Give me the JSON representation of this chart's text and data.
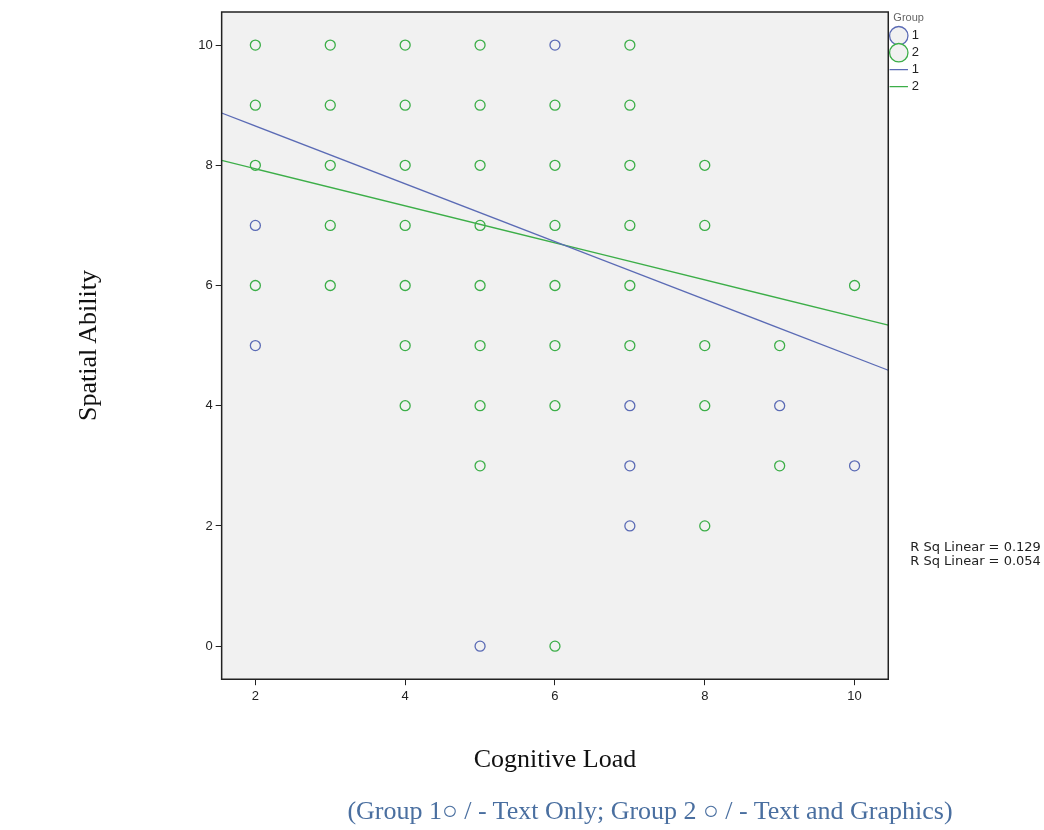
{
  "chart_data": {
    "type": "scatter",
    "xlabel": "Cognitive Load",
    "ylabel": "Spatial Ability",
    "legend_title": "Group",
    "legend": "top right",
    "grid": false,
    "marker": "circle",
    "line_style": "solid",
    "xlim": [
      1.55,
      10.45
    ],
    "xticks": [
      2,
      4,
      6,
      8,
      10
    ],
    "ylim": [
      -0.55,
      10.55
    ],
    "yticks": [
      0,
      2,
      4,
      6,
      8,
      10
    ],
    "annotations": [
      "R Sq Linear = 0.129",
      "R Sq Linear = 0.054",
      "(Group 1○ / - Text Only; Group 2 ○ / - Text and Graphics)"
    ],
    "series": [
      {
        "name": "1",
        "color": "#5b6bb5",
        "x": [
          2,
          2,
          6,
          5,
          7,
          7,
          7,
          9,
          10
        ],
        "values": [
          7,
          5,
          10,
          0,
          4,
          3,
          2,
          4,
          3
        ]
      },
      {
        "name": "2",
        "color": "#3cae48",
        "x": [
          2,
          3,
          4,
          5,
          7,
          2,
          3,
          4,
          5,
          6,
          7,
          2,
          3,
          4,
          5,
          6,
          7,
          8,
          3,
          4,
          5,
          6,
          7,
          8,
          2,
          3,
          4,
          5,
          6,
          7,
          10,
          4,
          5,
          6,
          7,
          8,
          9,
          4,
          5,
          6,
          8,
          5,
          9,
          8,
          6
        ],
        "values": [
          10,
          10,
          10,
          10,
          10,
          9,
          9,
          9,
          9,
          9,
          9,
          8,
          8,
          8,
          8,
          8,
          8,
          8,
          7,
          7,
          7,
          7,
          7,
          7,
          6,
          6,
          6,
          6,
          6,
          6,
          6,
          5,
          5,
          5,
          5,
          5,
          5,
          4,
          4,
          4,
          4,
          3,
          3,
          2,
          0
        ]
      },
      {
        "name": "1",
        "type": "line",
        "marker": "none",
        "color": "#5b6bb5",
        "x": [
          1.55,
          10.45
        ],
        "values": [
          8.87,
          4.59
        ]
      },
      {
        "name": "2",
        "type": "line",
        "marker": "none",
        "color": "#3cae48",
        "x": [
          1.55,
          10.45
        ],
        "values": [
          8.08,
          5.34
        ]
      }
    ]
  }
}
